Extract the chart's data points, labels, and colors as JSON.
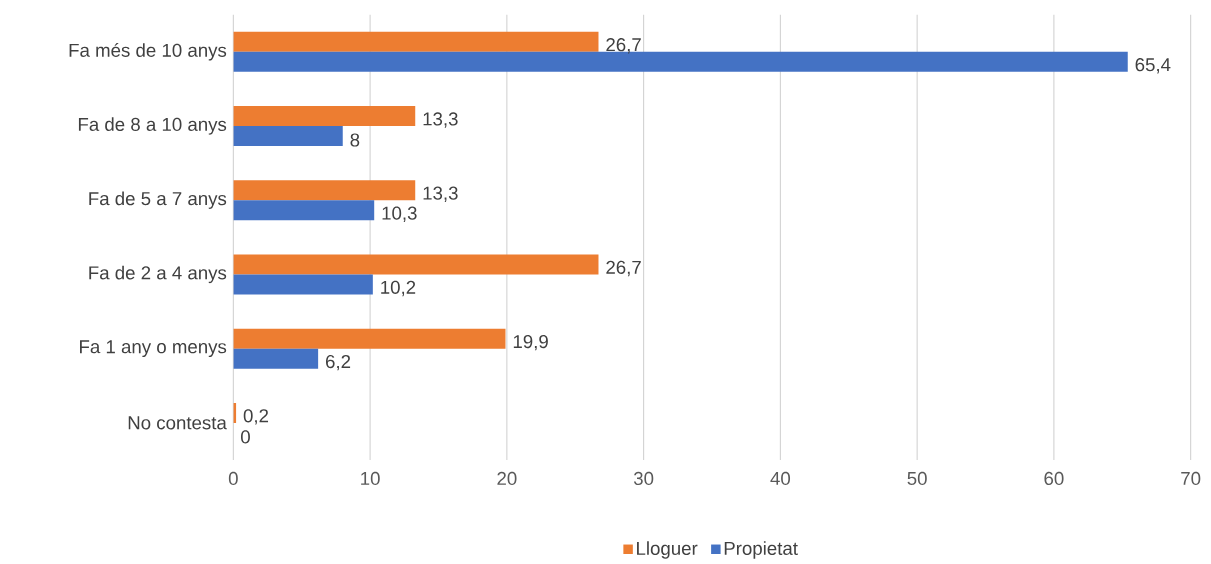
{
  "chart_data": {
    "type": "bar",
    "orientation": "horizontal",
    "categories": [
      "Fa més de 10 anys",
      "Fa de 8 a 10 anys",
      "Fa de 5 a 7 anys",
      "Fa de 2 a 4 anys",
      "Fa 1 any o menys",
      "No contesta"
    ],
    "series": [
      {
        "name": "Lloguer",
        "color": "#ed7d31",
        "values": [
          26.7,
          13.3,
          13.3,
          26.7,
          19.9,
          0.2
        ],
        "value_labels": [
          "26,7",
          "13,3",
          "13,3",
          "26,7",
          "19,9",
          "0,2"
        ]
      },
      {
        "name": "Propietat",
        "color": "#4472c4",
        "values": [
          65.4,
          8,
          10.3,
          10.2,
          6.2,
          0
        ],
        "value_labels": [
          "65,4",
          "8",
          "10,3",
          "10,2",
          "6,2",
          "0"
        ]
      }
    ],
    "xlim": [
      0,
      70
    ],
    "xticks": [
      0,
      10,
      20,
      30,
      40,
      50,
      60,
      70
    ],
    "grid": "x",
    "legend": "bottom"
  }
}
